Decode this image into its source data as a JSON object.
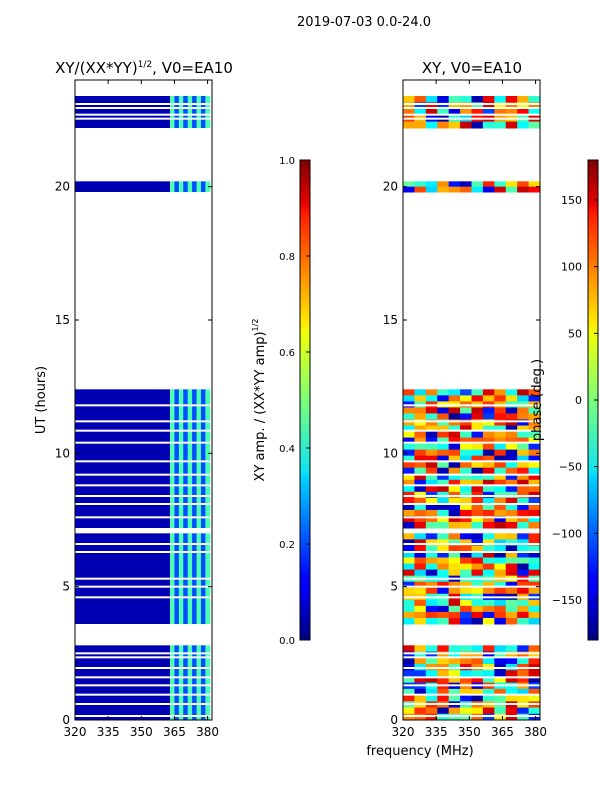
{
  "figure_title": "2019-07-03 0.0-24.0",
  "xlabel": "frequency (MHz)",
  "chart_data": [
    {
      "type": "heatmap",
      "title_main": "XY/(XX*YY)",
      "title_sup": "1/2",
      "title_tail": ", V0=EA10",
      "ylabel": "UT (hours)",
      "xlim": [
        320,
        382
      ],
      "ylim": [
        0,
        24
      ],
      "xticks": [
        320,
        335,
        350,
        365,
        380
      ],
      "yticks": [
        0,
        5,
        10,
        15,
        20
      ],
      "colorbar": {
        "label_main": "XY amp. / (XX*YY amp)",
        "label_sup": "1/2",
        "range": [
          0.0,
          1.0
        ],
        "ticks": [
          "0.0",
          "0.2",
          "0.4",
          "0.6",
          "0.8",
          "1.0"
        ],
        "tick_values": [
          0.0,
          0.2,
          0.4,
          0.6,
          0.8,
          1.0
        ]
      },
      "data_blocks_ut": [
        [
          0.0,
          2.8
        ],
        [
          3.6,
          7.0
        ],
        [
          7.2,
          12.4
        ],
        [
          19.8,
          20.2
        ],
        [
          22.2,
          23.4
        ]
      ],
      "gap_lines_ut": [
        0.15,
        0.6,
        0.95,
        1.3,
        1.6,
        1.95,
        2.35,
        2.5,
        4.6,
        5.0,
        5.3,
        6.3,
        6.6,
        7.6,
        8.1,
        8.4,
        8.8,
        9.2,
        9.7,
        10.4,
        10.85,
        11.2,
        11.8,
        22.55,
        22.7,
        22.95,
        23.1
      ],
      "low_band_mhz": [
        320,
        363
      ],
      "low_band_value": 0.05,
      "active_band_mhz": [
        363,
        381
      ],
      "active_band_value": 0.35
    },
    {
      "type": "heatmap",
      "title": "XY, V0=EA10",
      "xlim": [
        320,
        382
      ],
      "ylim": [
        0,
        24
      ],
      "xticks": [
        320,
        335,
        350,
        365,
        380
      ],
      "yticks": [
        0,
        5,
        10,
        15,
        20
      ],
      "colorbar": {
        "label": "phase (deg.)",
        "range": [
          -180,
          180
        ],
        "ticks": [
          "−150",
          "−100",
          "−50",
          "0",
          "50",
          "100",
          "150"
        ],
        "tick_values": [
          -150,
          -100,
          -50,
          0,
          50,
          100,
          150
        ]
      },
      "data_blocks_ut": [
        [
          0.0,
          2.8
        ],
        [
          3.6,
          7.0
        ],
        [
          7.2,
          12.4
        ],
        [
          19.8,
          20.2
        ],
        [
          22.2,
          23.4
        ]
      ],
      "gap_lines_ut": [
        0.15,
        0.6,
        0.95,
        1.3,
        1.6,
        1.95,
        2.35,
        2.5,
        4.6,
        5.0,
        5.3,
        6.3,
        6.6,
        7.6,
        8.1,
        8.4,
        8.8,
        9.2,
        9.7,
        10.4,
        10.85,
        11.2,
        11.8,
        22.55,
        22.7,
        22.95,
        23.1
      ],
      "phase_pattern": "noisy phase, mostly yellow-red (+50 to +150 deg) with blue/cyan stripes"
    }
  ]
}
